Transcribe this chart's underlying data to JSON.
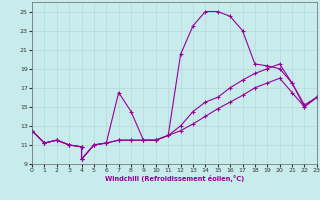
{
  "xlabel": "Windchill (Refroidissement éolien,°C)",
  "bg_color": "#c8ecec",
  "line_color": "#990099",
  "grid_color": "#b8d8d8",
  "xlim": [
    0,
    23
  ],
  "ylim": [
    9,
    26
  ],
  "yticks": [
    9,
    11,
    13,
    15,
    17,
    19,
    21,
    23,
    25
  ],
  "xticks": [
    0,
    1,
    2,
    3,
    4,
    5,
    6,
    7,
    8,
    9,
    10,
    11,
    12,
    13,
    14,
    15,
    16,
    17,
    18,
    19,
    20,
    21,
    22,
    23
  ],
  "series": [
    {
      "x": [
        0,
        1,
        2,
        3,
        4,
        4,
        5,
        6,
        7,
        8,
        9,
        10,
        11,
        12,
        13,
        14,
        15,
        16,
        17,
        18,
        19,
        20,
        21,
        22,
        23
      ],
      "y": [
        12.5,
        11.2,
        11.5,
        11.0,
        10.8,
        9.5,
        11.0,
        11.2,
        16.5,
        14.5,
        11.5,
        11.5,
        12.0,
        20.5,
        23.5,
        25.0,
        25.0,
        24.5,
        23.0,
        19.5,
        19.3,
        19.0,
        17.5,
        15.0,
        16.0
      ]
    },
    {
      "x": [
        0,
        1,
        2,
        3,
        4,
        4,
        5,
        6,
        7,
        8,
        9,
        10,
        11,
        12,
        13,
        14,
        15,
        16,
        17,
        18,
        19,
        20,
        21,
        22,
        23
      ],
      "y": [
        12.5,
        11.2,
        11.5,
        11.0,
        10.8,
        9.5,
        11.0,
        11.2,
        11.5,
        11.5,
        11.5,
        11.5,
        12.0,
        13.0,
        14.5,
        15.5,
        16.0,
        17.0,
        17.8,
        18.5,
        19.0,
        19.5,
        17.5,
        15.2,
        16.0
      ]
    },
    {
      "x": [
        0,
        1,
        2,
        3,
        4,
        4,
        5,
        6,
        7,
        8,
        9,
        10,
        11,
        12,
        13,
        14,
        15,
        16,
        17,
        18,
        19,
        20,
        21,
        22,
        23
      ],
      "y": [
        12.5,
        11.2,
        11.5,
        11.0,
        10.8,
        9.5,
        11.0,
        11.2,
        11.5,
        11.5,
        11.5,
        11.5,
        12.0,
        12.5,
        13.2,
        14.0,
        14.8,
        15.5,
        16.2,
        17.0,
        17.5,
        18.0,
        16.5,
        15.0,
        16.0
      ]
    }
  ]
}
